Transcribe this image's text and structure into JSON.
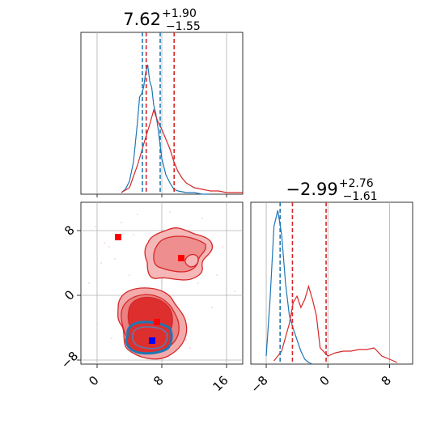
{
  "chart_data": [
    {
      "panel": "top-left-marginal",
      "type": "histogram",
      "title": {
        "main": "7.62",
        "sup": "+1.90",
        "sub": "−1.55"
      },
      "xlim": [
        -2,
        18
      ],
      "grid": true,
      "series": [
        {
          "color": "#1f77b4",
          "x": [
            3,
            3.5,
            4,
            4.5,
            5,
            5.25,
            5.5,
            5.75,
            6,
            6.25,
            6.5,
            6.75,
            7,
            7.25,
            7.5,
            7.75,
            8,
            8.5,
            9,
            9.5,
            10,
            11,
            12,
            13,
            14
          ],
          "y": [
            0.01,
            0.03,
            0.08,
            0.2,
            0.45,
            0.6,
            0.62,
            0.66,
            0.75,
            0.8,
            0.7,
            0.66,
            0.55,
            0.5,
            0.42,
            0.32,
            0.22,
            0.12,
            0.07,
            0.03,
            0.02,
            0.01,
            0.01,
            0,
            0
          ]
        },
        {
          "color": "#d62728",
          "x": [
            3,
            4,
            5,
            6,
            6.5,
            7,
            7.5,
            8,
            8.5,
            9,
            9.5,
            10,
            10.5,
            11,
            12,
            13,
            14,
            15,
            16,
            17,
            18
          ],
          "y": [
            0.01,
            0.04,
            0.18,
            0.35,
            0.43,
            0.52,
            0.45,
            0.4,
            0.34,
            0.28,
            0.2,
            0.14,
            0.1,
            0.07,
            0.04,
            0.03,
            0.02,
            0.02,
            0.01,
            0.01,
            0.01
          ]
        }
      ],
      "vlines": [
        {
          "x": 5.6,
          "color": "#1f77b4"
        },
        {
          "x": 7.8,
          "color": "#1f77b4"
        },
        {
          "x": 6.07,
          "color": "#d62728"
        },
        {
          "x": 9.52,
          "color": "#d62728"
        }
      ]
    },
    {
      "panel": "bottom-left-joint",
      "type": "scatter",
      "xlim": [
        -2,
        18
      ],
      "ylim": [
        -8.5,
        11.5
      ],
      "xticks": [
        0,
        8,
        16
      ],
      "yticks": [
        -8,
        0,
        8
      ],
      "grid": true,
      "markers": [
        {
          "x": 2.6,
          "y": 7.2,
          "color": "#ff0000",
          "shape": "square"
        },
        {
          "x": 10.4,
          "y": 4.6,
          "color": "#ff0000",
          "shape": "square"
        },
        {
          "x": 7.4,
          "y": -3.3,
          "color": "#ff0000",
          "shape": "square"
        },
        {
          "x": 6.8,
          "y": -5.6,
          "color": "#0000ff",
          "shape": "square"
        }
      ]
    },
    {
      "panel": "bottom-right-marginal",
      "type": "histogram",
      "title": {
        "main": "−2.99",
        "sup": "+2.76",
        "sub": "−1.61"
      },
      "xlim": [
        -10,
        11
      ],
      "xticks": [
        -8,
        0,
        8
      ],
      "grid": true,
      "series": [
        {
          "color": "#1f77b4",
          "x": [
            -8,
            -7.5,
            -7,
            -6.5,
            -6,
            -5.5,
            -5,
            -4.5,
            -4,
            -3.5,
            -3,
            -2.5,
            -2
          ],
          "y": [
            0.05,
            0.4,
            0.85,
            0.95,
            0.8,
            0.5,
            0.3,
            0.22,
            0.15,
            0.08,
            0.03,
            0.01,
            0
          ]
        },
        {
          "color": "#d62728",
          "x": [
            -7,
            -6,
            -5,
            -4.5,
            -4,
            -3.5,
            -3,
            -2.5,
            -2,
            -1.5,
            -1,
            0,
            1,
            2,
            3,
            4,
            5,
            6,
            7,
            8,
            9
          ],
          "y": [
            0.02,
            0.08,
            0.25,
            0.38,
            0.42,
            0.35,
            0.4,
            0.48,
            0.4,
            0.3,
            0.1,
            0.05,
            0.07,
            0.08,
            0.08,
            0.09,
            0.09,
            0.1,
            0.05,
            0.03,
            0.01
          ]
        }
      ],
      "vlines": [
        {
          "x": -6.2,
          "color": "#1f77b4"
        },
        {
          "x": -4.6,
          "color": "#d62728"
        },
        {
          "x": -0.23,
          "color": "#d62728"
        }
      ]
    }
  ]
}
